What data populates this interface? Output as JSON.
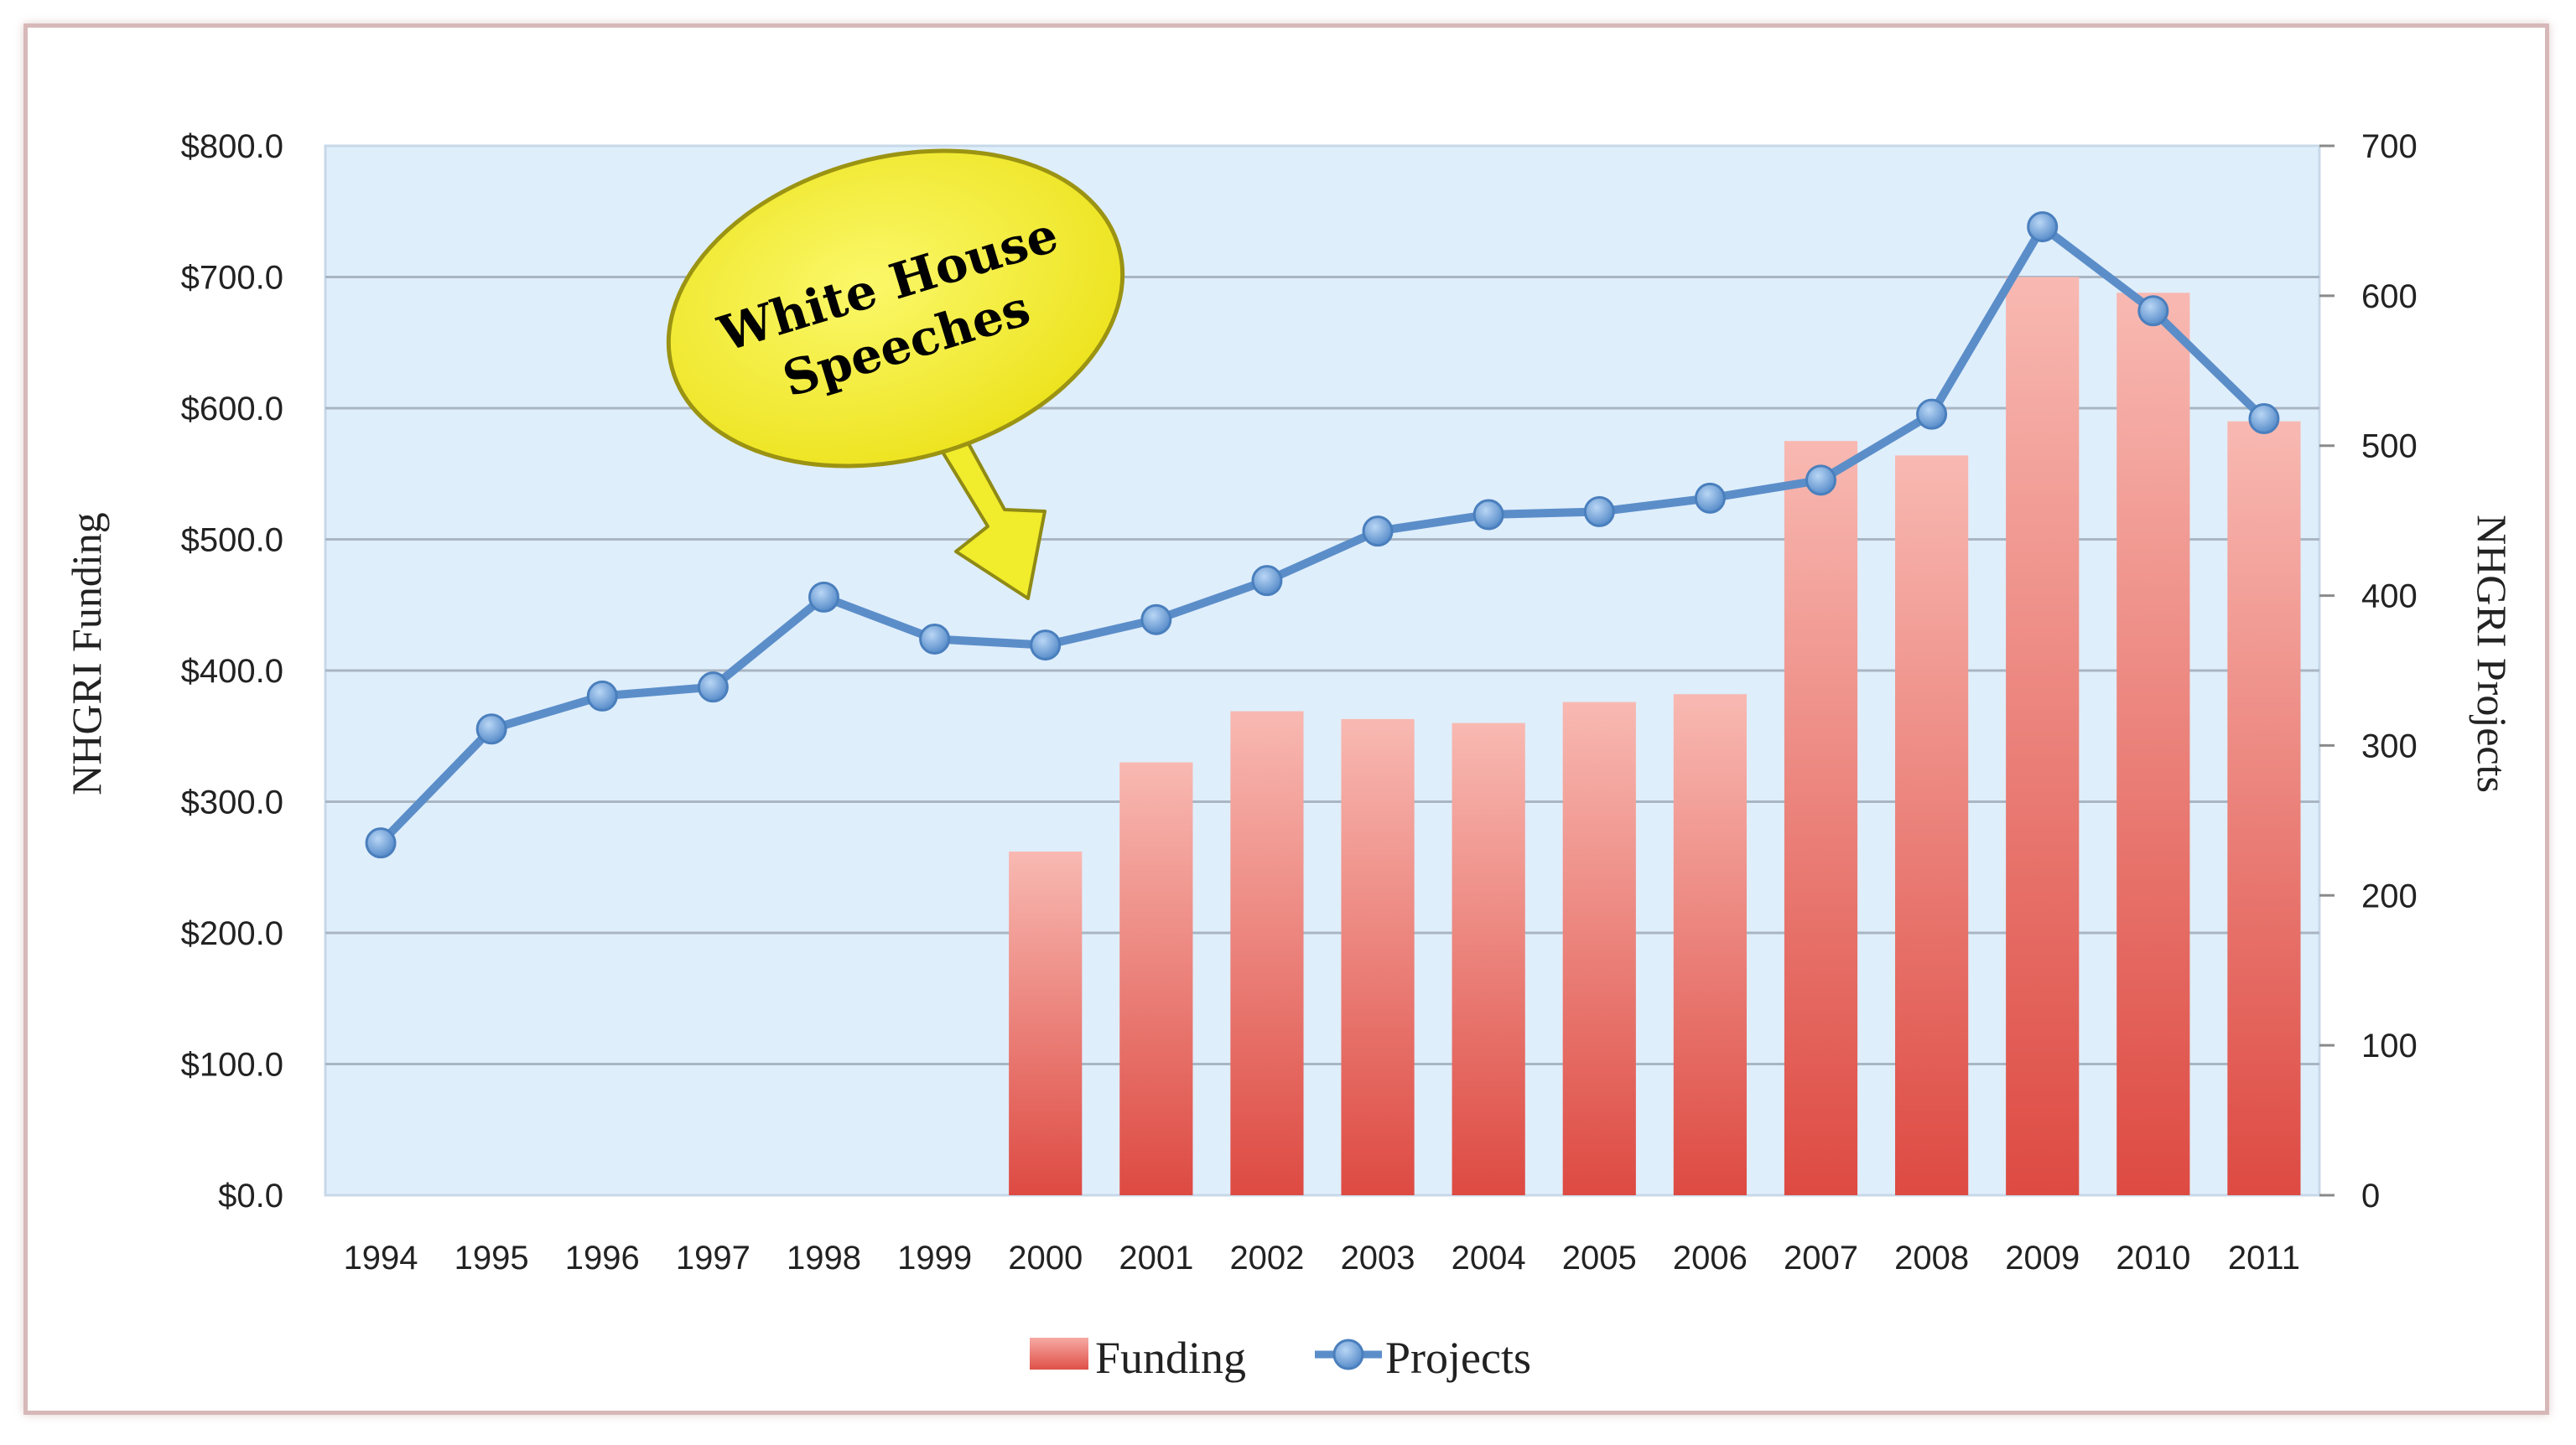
{
  "chart_data": {
    "type": "bar",
    "categories": [
      "1994",
      "1995",
      "1996",
      "1997",
      "1998",
      "1999",
      "2000",
      "2001",
      "2002",
      "2003",
      "2004",
      "2005",
      "2006",
      "2007",
      "2008",
      "2009",
      "2010",
      "2011"
    ],
    "series": [
      {
        "name": "Funding",
        "type": "bar",
        "axis": "left",
        "color": "#e8615a",
        "values": [
          null,
          null,
          null,
          null,
          null,
          null,
          262,
          330,
          369,
          363,
          360,
          376,
          382,
          575,
          564,
          700,
          688,
          590
        ]
      },
      {
        "name": "Projects",
        "type": "line",
        "axis": "right",
        "color": "#5b8ec9",
        "values": [
          235,
          311,
          333,
          339,
          399,
          371,
          367,
          384,
          410,
          443,
          454,
          456,
          465,
          477,
          521,
          646,
          590,
          518
        ]
      }
    ],
    "ylabel": "NHGRI Funding",
    "y2label": "NHGRI Projects",
    "ylim": [
      0,
      800
    ],
    "y2lim": [
      0,
      700
    ],
    "yticks": [
      "$0.0",
      "$100.0",
      "$200.0",
      "$300.0",
      "$400.0",
      "$500.0",
      "$600.0",
      "$700.0",
      "$800.0"
    ],
    "y2ticks": [
      "0",
      "100",
      "200",
      "300",
      "400",
      "500",
      "600",
      "700"
    ],
    "grid": true,
    "legend_position": "bottom",
    "plot_background": "#dfeefb",
    "annotation": {
      "lines": [
        "White House",
        "Speeches"
      ],
      "fill": "#f5f03a",
      "points_to": "2000"
    }
  }
}
